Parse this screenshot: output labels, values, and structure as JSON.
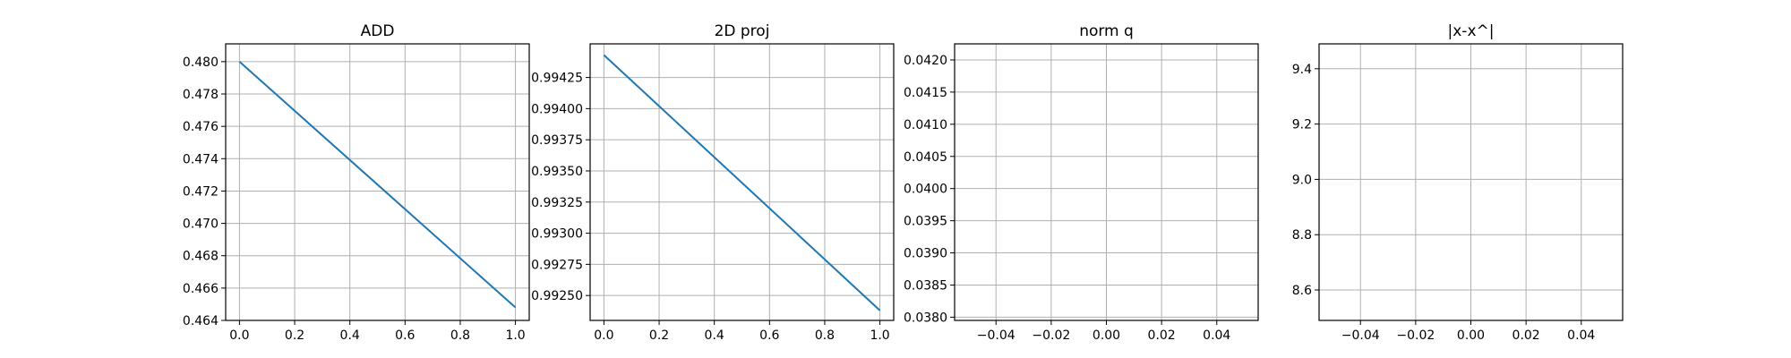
{
  "chart_data": [
    {
      "type": "line",
      "title": "ADD",
      "xlabel": "",
      "ylabel": "",
      "grid": true,
      "xlim": [
        -0.05,
        1.05
      ],
      "ylim": [
        0.464,
        0.4811
      ],
      "x_ticks": [
        0.0,
        0.2,
        0.4,
        0.6,
        0.8,
        1.0
      ],
      "x_tick_labels": [
        "0.0",
        "0.2",
        "0.4",
        "0.6",
        "0.8",
        "1.0"
      ],
      "y_ticks": [
        0.464,
        0.466,
        0.468,
        0.47,
        0.472,
        0.474,
        0.476,
        0.478,
        0.48
      ],
      "y_tick_labels": [
        "0.464",
        "0.466",
        "0.468",
        "0.470",
        "0.472",
        "0.474",
        "0.476",
        "0.478",
        "0.480"
      ],
      "series": [
        {
          "color": "#1f77b4",
          "x": [
            0.0,
            1.0
          ],
          "y": [
            0.48,
            0.4648
          ]
        }
      ]
    },
    {
      "type": "line",
      "title": "2D proj",
      "xlabel": "",
      "ylabel": "",
      "grid": true,
      "xlim": [
        -0.05,
        1.05
      ],
      "ylim": [
        0.9923,
        0.99452
      ],
      "x_ticks": [
        0.0,
        0.2,
        0.4,
        0.6,
        0.8,
        1.0
      ],
      "x_tick_labels": [
        "0.0",
        "0.2",
        "0.4",
        "0.6",
        "0.8",
        "1.0"
      ],
      "y_ticks": [
        0.9925,
        0.99275,
        0.993,
        0.99325,
        0.9935,
        0.99375,
        0.994,
        0.99425
      ],
      "y_tick_labels": [
        "0.99250",
        "0.99275",
        "0.99300",
        "0.99325",
        "0.99350",
        "0.99375",
        "0.99400",
        "0.99425"
      ],
      "series": [
        {
          "color": "#1f77b4",
          "x": [
            0.0,
            1.0
          ],
          "y": [
            0.99443,
            0.99238
          ]
        }
      ]
    },
    {
      "type": "line",
      "title": "norm q",
      "xlabel": "",
      "ylabel": "",
      "grid": true,
      "xlim": [
        -0.055,
        0.055
      ],
      "ylim": [
        0.03795,
        0.04225
      ],
      "x_ticks": [
        -0.04,
        -0.02,
        0.0,
        0.02,
        0.04
      ],
      "x_tick_labels": [
        "−0.04",
        "−0.02",
        "0.00",
        "0.02",
        "0.04"
      ],
      "y_ticks": [
        0.038,
        0.0385,
        0.039,
        0.0395,
        0.04,
        0.0405,
        0.041,
        0.0415,
        0.042
      ],
      "y_tick_labels": [
        "0.0380",
        "0.0385",
        "0.0390",
        "0.0395",
        "0.0400",
        "0.0405",
        "0.0410",
        "0.0415",
        "0.0420"
      ],
      "series": []
    },
    {
      "type": "line",
      "title": "|x-x^|",
      "xlabel": "",
      "ylabel": "",
      "grid": true,
      "xlim": [
        -0.055,
        0.055
      ],
      "ylim": [
        8.49,
        9.49
      ],
      "x_ticks": [
        -0.04,
        -0.02,
        0.0,
        0.02,
        0.04
      ],
      "x_tick_labels": [
        "−0.04",
        "−0.02",
        "0.00",
        "0.02",
        "0.04"
      ],
      "y_ticks": [
        8.6,
        8.8,
        9.0,
        9.2,
        9.4
      ],
      "y_tick_labels": [
        "8.6",
        "8.8",
        "9.0",
        "9.2",
        "9.4"
      ],
      "series": []
    }
  ]
}
